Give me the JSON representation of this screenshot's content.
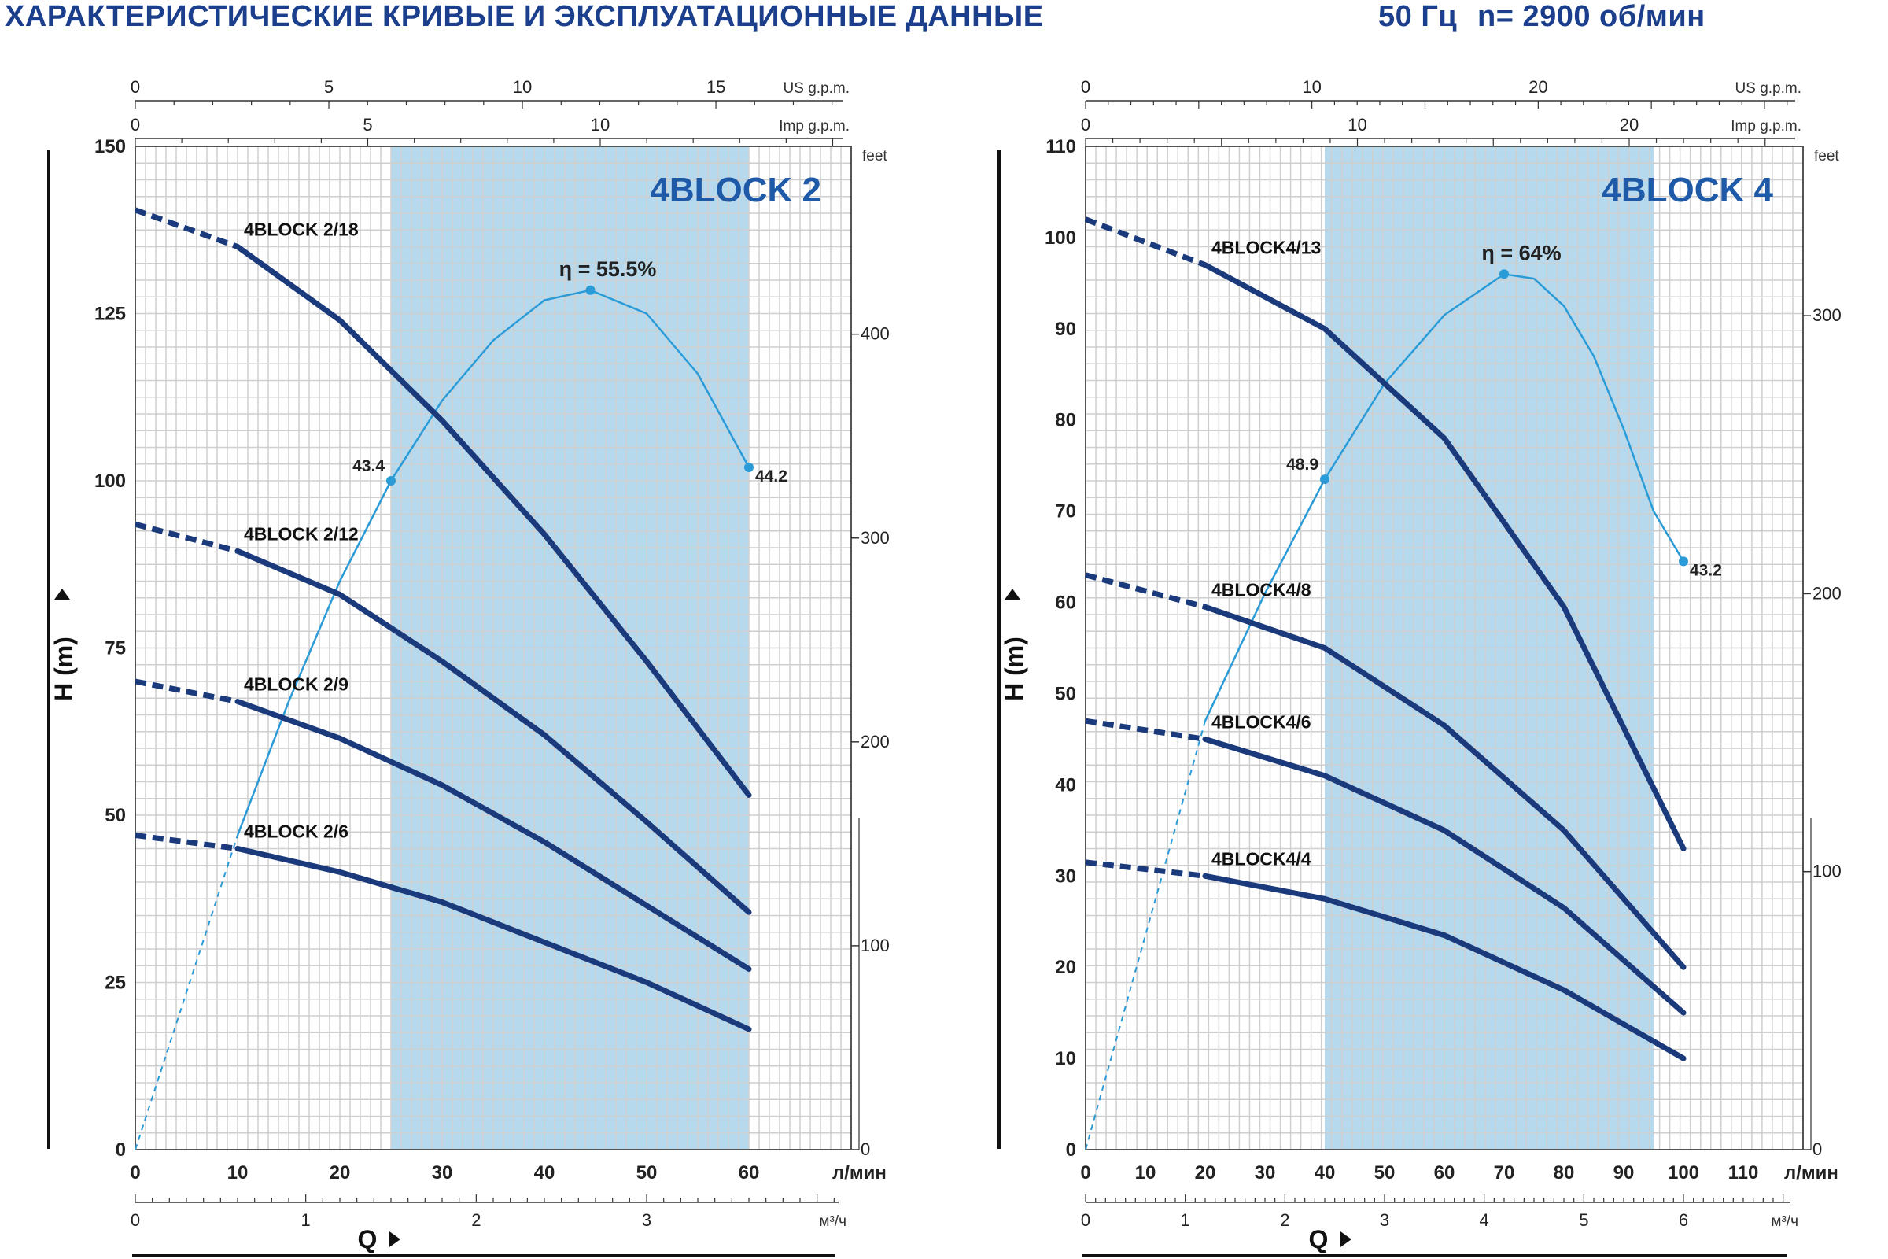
{
  "header": {
    "title": "ХАРАКТЕРИСТИЧЕСКИЕ КРИВЫЕ И ЭКСПЛУАТАЦИОННЫЕ ДАННЫЕ",
    "frequency": "50 Гц",
    "speed": "n= 2900 об/мин"
  },
  "colors": {
    "curve": "#1a3a7c",
    "efficiency": "#2a9bd7",
    "band": "#b6d9ee",
    "grid": "#cfcfcf",
    "title": "#1b3f8c"
  },
  "chart_data": [
    {
      "type": "line",
      "title": "4BLOCK 2",
      "xlabel": "Q",
      "ylabel": "H (m)",
      "xunit": "л/мин",
      "xlim": [
        0,
        70
      ],
      "ylim": [
        0,
        150
      ],
      "x_ticks": [
        0,
        10,
        20,
        30,
        40,
        50,
        60
      ],
      "y_ticks": [
        0,
        25,
        50,
        75,
        100,
        125,
        150
      ],
      "feet_unit": "feet",
      "feet_ticks": [
        0,
        100,
        200,
        300,
        400
      ],
      "us_gpm_unit": "US g.p.m.",
      "us_gpm_ticks": [
        0,
        5,
        10,
        15
      ],
      "imp_gpm_unit": "Imp g.p.m.",
      "imp_gpm_ticks": [
        0,
        5,
        10
      ],
      "m3h_unit": "м³/ч",
      "m3h_ticks": [
        0,
        1,
        2,
        3
      ],
      "operating_band": [
        25,
        60
      ],
      "series": [
        {
          "name": "4BLOCK 2/18",
          "dashed": [
            [
              0,
              140.5
            ],
            [
              10,
              135
            ]
          ],
          "solid": [
            [
              10,
              135
            ],
            [
              20,
              124
            ],
            [
              30,
              109
            ],
            [
              40,
              92
            ],
            [
              50,
              73
            ],
            [
              60,
              53
            ]
          ]
        },
        {
          "name": "4BLOCK 2/12",
          "dashed": [
            [
              0,
              93.5
            ],
            [
              10,
              89.5
            ]
          ],
          "solid": [
            [
              10,
              89.5
            ],
            [
              20,
              83
            ],
            [
              30,
              73
            ],
            [
              40,
              62
            ],
            [
              50,
              49
            ],
            [
              60,
              35.5
            ]
          ]
        },
        {
          "name": "4BLOCK 2/9",
          "dashed": [
            [
              0,
              70
            ],
            [
              10,
              67
            ]
          ],
          "solid": [
            [
              10,
              67
            ],
            [
              20,
              61.5
            ],
            [
              30,
              54.5
            ],
            [
              40,
              46
            ],
            [
              50,
              36.5
            ],
            [
              60,
              27
            ]
          ]
        },
        {
          "name": "4BLOCK 2/6",
          "dashed": [
            [
              0,
              47
            ],
            [
              10,
              45
            ]
          ],
          "solid": [
            [
              10,
              45
            ],
            [
              20,
              41.5
            ],
            [
              30,
              37
            ],
            [
              40,
              31
            ],
            [
              50,
              25
            ],
            [
              60,
              18
            ]
          ]
        }
      ],
      "efficiency": {
        "peak_label": "η = 55.5%",
        "dashed": [
          [
            0,
            0
          ],
          [
            10,
            47
          ]
        ],
        "solid": [
          [
            10,
            47
          ],
          [
            15,
            67
          ],
          [
            20,
            85
          ],
          [
            25,
            100
          ],
          [
            30,
            112
          ],
          [
            35,
            121
          ],
          [
            40,
            127
          ],
          [
            44.5,
            128.5
          ],
          [
            50,
            125
          ],
          [
            55,
            116
          ],
          [
            60,
            102
          ]
        ],
        "points": [
          {
            "x": 25,
            "y": 100,
            "label": "43.4"
          },
          {
            "x": 44.5,
            "y": 128.5,
            "label": ""
          },
          {
            "x": 60,
            "y": 102,
            "label": "44.2"
          }
        ]
      }
    },
    {
      "type": "line",
      "title": "4BLOCK 4",
      "xlabel": "Q",
      "ylabel": "H (m)",
      "xunit": "л/мин",
      "xlim": [
        0,
        120
      ],
      "ylim": [
        0,
        110
      ],
      "x_ticks": [
        0,
        10,
        20,
        30,
        40,
        50,
        60,
        70,
        80,
        90,
        100,
        110
      ],
      "y_ticks": [
        0,
        10,
        20,
        30,
        40,
        50,
        60,
        70,
        80,
        90,
        100,
        110
      ],
      "feet_unit": "feet",
      "feet_ticks": [
        0,
        100,
        200,
        300
      ],
      "us_gpm_unit": "US g.p.m.",
      "us_gpm_ticks": [
        0,
        10,
        20
      ],
      "imp_gpm_unit": "Imp g.p.m.",
      "imp_gpm_ticks": [
        0,
        10,
        20
      ],
      "m3h_unit": "м³/ч",
      "m3h_ticks": [
        0,
        1,
        2,
        3,
        4,
        5,
        6
      ],
      "operating_band": [
        40,
        95
      ],
      "series": [
        {
          "name": "4BLOCK4/13",
          "dashed": [
            [
              0,
              102
            ],
            [
              20,
              97
            ]
          ],
          "solid": [
            [
              20,
              97
            ],
            [
              40,
              90
            ],
            [
              60,
              78
            ],
            [
              80,
              59.5
            ],
            [
              100,
              33
            ]
          ]
        },
        {
          "name": "4BLOCK4/8",
          "dashed": [
            [
              0,
              63
            ],
            [
              20,
              59.5
            ]
          ],
          "solid": [
            [
              20,
              59.5
            ],
            [
              40,
              55
            ],
            [
              60,
              46.5
            ],
            [
              80,
              35
            ],
            [
              100,
              20
            ]
          ]
        },
        {
          "name": "4BLOCK4/6",
          "dashed": [
            [
              0,
              47
            ],
            [
              20,
              45
            ]
          ],
          "solid": [
            [
              20,
              45
            ],
            [
              40,
              41
            ],
            [
              60,
              35
            ],
            [
              80,
              26.5
            ],
            [
              100,
              15
            ]
          ]
        },
        {
          "name": "4BLOCK4/4",
          "dashed": [
            [
              0,
              31.5
            ],
            [
              20,
              30
            ]
          ],
          "solid": [
            [
              20,
              30
            ],
            [
              40,
              27.5
            ],
            [
              60,
              23.5
            ],
            [
              80,
              17.5
            ],
            [
              100,
              10
            ]
          ]
        }
      ],
      "efficiency": {
        "peak_label": "η = 64%",
        "dashed": [
          [
            0,
            0
          ],
          [
            20,
            47
          ]
        ],
        "solid": [
          [
            20,
            47
          ],
          [
            30,
            61
          ],
          [
            40,
            73.5
          ],
          [
            50,
            84
          ],
          [
            60,
            91.5
          ],
          [
            70,
            96
          ],
          [
            75,
            95.5
          ],
          [
            80,
            92.5
          ],
          [
            85,
            87
          ],
          [
            90,
            79
          ],
          [
            95,
            70
          ],
          [
            100,
            64.5
          ]
        ],
        "points": [
          {
            "x": 40,
            "y": 73.5,
            "label": "48.9"
          },
          {
            "x": 70,
            "y": 96,
            "label": ""
          },
          {
            "x": 100,
            "y": 64.5,
            "label": "43.2"
          }
        ]
      }
    }
  ]
}
